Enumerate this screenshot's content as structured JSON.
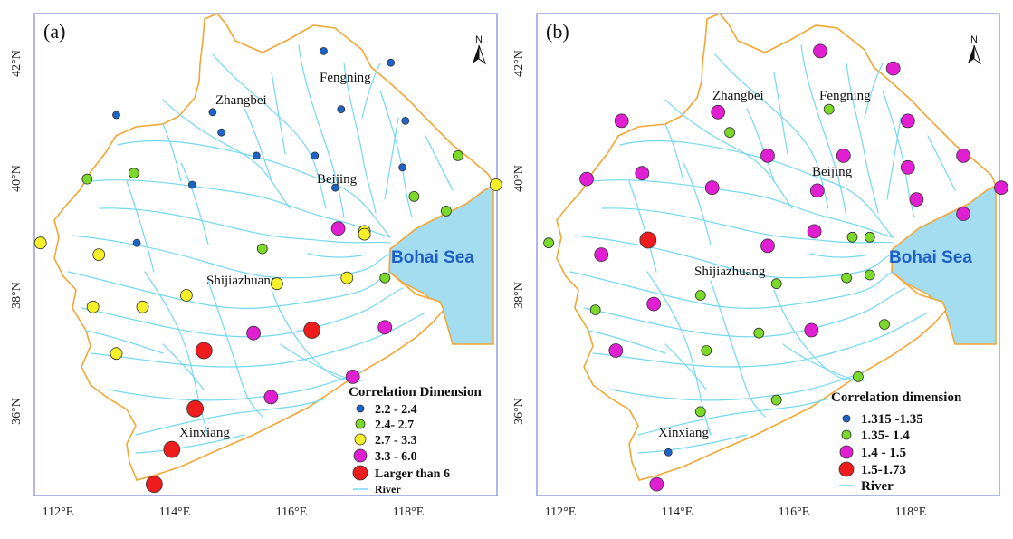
{
  "colors": {
    "boundary": "#f2a634",
    "river": "#74d8f0",
    "sea": "#a4dcf0",
    "blue": "#1e64c8",
    "green": "#7bd92a",
    "yellow": "#f6f02a",
    "magenta": "#e11ed2",
    "red": "#ee1c1c",
    "frame": "#7a86d8"
  },
  "panels": [
    {
      "label": "(a)",
      "north": "N",
      "cities": {
        "zhangbei": "Zhangbei",
        "fengning": "Fengning",
        "beijing": "Beijing",
        "shijiazhuang": "Shijiazhuang",
        "xinxiang": "Xinxiang"
      },
      "sea_label": "Bohai Sea",
      "lat_ticks": [
        "42°N",
        "40°N",
        "38°N",
        "36°N"
      ],
      "lon_ticks": [
        "112°E",
        "114°E",
        "116°E",
        "118°E"
      ],
      "legend": {
        "title": "Correlation Dimension",
        "items": [
          {
            "label": "2.2 - 2.4",
            "cls": "blue"
          },
          {
            "label": "2.4- 2.7",
            "cls": "green"
          },
          {
            "label": "2.7 - 3.3",
            "cls": "yellow"
          },
          {
            "label": "3.3 - 6.0",
            "cls": "magenta"
          },
          {
            "label": "Larger than 6",
            "cls": "red"
          }
        ],
        "river": "River"
      },
      "stations": [
        {
          "lon": 116.55,
          "lat": 42.2,
          "cls": "blue"
        },
        {
          "lon": 117.7,
          "lat": 42.0,
          "cls": "blue"
        },
        {
          "lon": 114.65,
          "lat": 41.15,
          "cls": "blue"
        },
        {
          "lon": 116.85,
          "lat": 41.2,
          "cls": "blue"
        },
        {
          "lon": 113.0,
          "lat": 41.1,
          "cls": "blue"
        },
        {
          "lon": 117.95,
          "lat": 41.0,
          "cls": "blue"
        },
        {
          "lon": 114.8,
          "lat": 40.8,
          "cls": "blue"
        },
        {
          "lon": 115.4,
          "lat": 40.4,
          "cls": "blue"
        },
        {
          "lon": 116.4,
          "lat": 40.4,
          "cls": "blue"
        },
        {
          "lon": 117.9,
          "lat": 40.2,
          "cls": "blue"
        },
        {
          "lon": 114.3,
          "lat": 39.9,
          "cls": "blue"
        },
        {
          "lon": 116.75,
          "lat": 39.85,
          "cls": "blue"
        },
        {
          "lon": 113.35,
          "lat": 38.9,
          "cls": "blue"
        },
        {
          "lon": 113.3,
          "lat": 40.1,
          "cls": "green"
        },
        {
          "lon": 112.5,
          "lat": 40.0,
          "cls": "green"
        },
        {
          "lon": 118.85,
          "lat": 40.4,
          "cls": "green"
        },
        {
          "lon": 118.1,
          "lat": 39.7,
          "cls": "green"
        },
        {
          "lon": 118.65,
          "lat": 39.45,
          "cls": "green"
        },
        {
          "lon": 115.5,
          "lat": 38.8,
          "cls": "green"
        },
        {
          "lon": 117.6,
          "lat": 38.3,
          "cls": "green"
        },
        {
          "lon": 111.7,
          "lat": 38.9,
          "cls": "yellow"
        },
        {
          "lon": 112.7,
          "lat": 38.7,
          "cls": "yellow"
        },
        {
          "lon": 112.6,
          "lat": 37.8,
          "cls": "yellow"
        },
        {
          "lon": 113.45,
          "lat": 37.8,
          "cls": "yellow"
        },
        {
          "lon": 114.2,
          "lat": 38.0,
          "cls": "yellow"
        },
        {
          "lon": 113.0,
          "lat": 37.0,
          "cls": "yellow"
        },
        {
          "lon": 115.75,
          "lat": 38.2,
          "cls": "yellow"
        },
        {
          "lon": 116.95,
          "lat": 38.3,
          "cls": "yellow"
        },
        {
          "lon": 117.25,
          "lat": 39.1,
          "cls": "yellow"
        },
        {
          "lon": 119.5,
          "lat": 39.9,
          "cls": "yellow"
        },
        {
          "lon": 117.25,
          "lat": 39.05,
          "cls": "yellow"
        },
        {
          "lon": 116.8,
          "lat": 39.15,
          "cls": "magenta"
        },
        {
          "lon": 115.35,
          "lat": 37.35,
          "cls": "magenta"
        },
        {
          "lon": 117.6,
          "lat": 37.45,
          "cls": "magenta"
        },
        {
          "lon": 117.05,
          "lat": 36.6,
          "cls": "magenta"
        },
        {
          "lon": 115.65,
          "lat": 36.25,
          "cls": "magenta"
        },
        {
          "lon": 114.5,
          "lat": 37.05,
          "cls": "red"
        },
        {
          "lon": 116.35,
          "lat": 37.4,
          "cls": "red"
        },
        {
          "lon": 114.35,
          "lat": 36.05,
          "cls": "red"
        },
        {
          "lon": 113.95,
          "lat": 35.35,
          "cls": "red"
        },
        {
          "lon": 113.65,
          "lat": 34.75,
          "cls": "red"
        }
      ]
    },
    {
      "label": "(b)",
      "north": "N",
      "cities": {
        "zhangbei": "Zhangbei",
        "fengning": "Fengning",
        "beijing": "Beijing",
        "shijiazhuang": "Shijiazhuang",
        "xinxiang": "Xinxiang"
      },
      "sea_label": "Bohai Sea",
      "lat_ticks": [
        "42°N",
        "40°N",
        "38°N",
        "36°N"
      ],
      "lon_ticks": [
        "112°E",
        "114°E",
        "116°E",
        "118°E"
      ],
      "legend": {
        "title": "Correlation dimension",
        "items": [
          {
            "label": "1.315 -1.35",
            "cls": "blue"
          },
          {
            "label": "1.35- 1.4",
            "cls": "green"
          },
          {
            "label": "1.4 - 1.5",
            "cls": "magenta"
          },
          {
            "label": "1.5-1.73",
            "cls": "red"
          }
        ],
        "river": "River"
      },
      "stations": [
        {
          "lon": 113.85,
          "lat": 35.3,
          "cls": "blue"
        },
        {
          "lon": 114.9,
          "lat": 40.8,
          "cls": "green"
        },
        {
          "lon": 116.6,
          "lat": 41.2,
          "cls": "green"
        },
        {
          "lon": 111.8,
          "lat": 38.9,
          "cls": "green"
        },
        {
          "lon": 117.0,
          "lat": 39.0,
          "cls": "green"
        },
        {
          "lon": 117.3,
          "lat": 39.0,
          "cls": "green"
        },
        {
          "lon": 115.7,
          "lat": 38.2,
          "cls": "green"
        },
        {
          "lon": 116.9,
          "lat": 38.3,
          "cls": "green"
        },
        {
          "lon": 117.3,
          "lat": 38.35,
          "cls": "green"
        },
        {
          "lon": 112.6,
          "lat": 37.75,
          "cls": "green"
        },
        {
          "lon": 114.4,
          "lat": 38.0,
          "cls": "green"
        },
        {
          "lon": 115.4,
          "lat": 37.35,
          "cls": "green"
        },
        {
          "lon": 114.5,
          "lat": 37.05,
          "cls": "green"
        },
        {
          "lon": 117.55,
          "lat": 37.5,
          "cls": "green"
        },
        {
          "lon": 117.1,
          "lat": 36.6,
          "cls": "green"
        },
        {
          "lon": 115.7,
          "lat": 36.2,
          "cls": "green"
        },
        {
          "lon": 114.4,
          "lat": 36.0,
          "cls": "green"
        },
        {
          "lon": 116.45,
          "lat": 42.2,
          "cls": "magenta"
        },
        {
          "lon": 117.7,
          "lat": 41.9,
          "cls": "magenta"
        },
        {
          "lon": 114.7,
          "lat": 41.15,
          "cls": "magenta"
        },
        {
          "lon": 117.95,
          "lat": 41.0,
          "cls": "magenta"
        },
        {
          "lon": 113.05,
          "lat": 41.0,
          "cls": "magenta"
        },
        {
          "lon": 115.55,
          "lat": 40.4,
          "cls": "magenta"
        },
        {
          "lon": 116.85,
          "lat": 40.4,
          "cls": "magenta"
        },
        {
          "lon": 117.95,
          "lat": 40.2,
          "cls": "magenta"
        },
        {
          "lon": 118.9,
          "lat": 40.4,
          "cls": "magenta"
        },
        {
          "lon": 112.45,
          "lat": 40.0,
          "cls": "magenta"
        },
        {
          "lon": 113.4,
          "lat": 40.1,
          "cls": "magenta"
        },
        {
          "lon": 114.6,
          "lat": 39.85,
          "cls": "magenta"
        },
        {
          "lon": 116.4,
          "lat": 39.8,
          "cls": "magenta"
        },
        {
          "lon": 118.1,
          "lat": 39.65,
          "cls": "magenta"
        },
        {
          "lon": 118.9,
          "lat": 39.4,
          "cls": "magenta"
        },
        {
          "lon": 119.55,
          "lat": 39.85,
          "cls": "magenta"
        },
        {
          "lon": 112.7,
          "lat": 38.7,
          "cls": "magenta"
        },
        {
          "lon": 115.55,
          "lat": 38.85,
          "cls": "magenta"
        },
        {
          "lon": 116.35,
          "lat": 39.1,
          "cls": "magenta"
        },
        {
          "lon": 113.6,
          "lat": 37.85,
          "cls": "magenta"
        },
        {
          "lon": 112.95,
          "lat": 37.05,
          "cls": "magenta"
        },
        {
          "lon": 116.3,
          "lat": 37.4,
          "cls": "magenta"
        },
        {
          "lon": 113.65,
          "lat": 34.75,
          "cls": "magenta"
        },
        {
          "lon": 113.5,
          "lat": 38.95,
          "cls": "red"
        }
      ]
    }
  ]
}
